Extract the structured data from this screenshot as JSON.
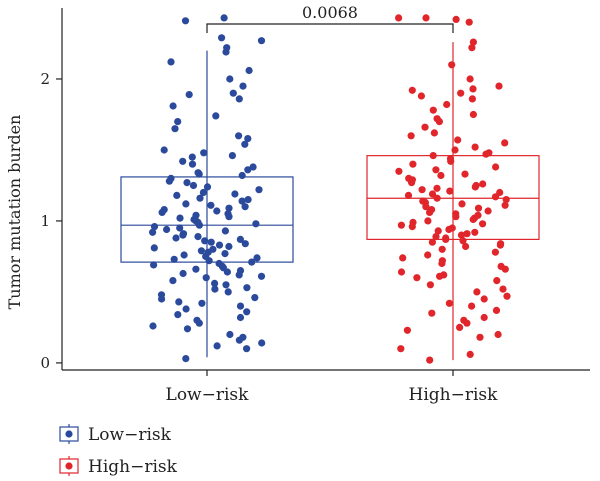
{
  "chart_data": {
    "type": "box",
    "title": "",
    "xlabel": "",
    "ylabel": "Tumor mutation burden",
    "ylim": [
      -0.05,
      2.5
    ],
    "yticks": [
      0,
      1,
      2
    ],
    "categories": [
      "Low−risk",
      "High−risk"
    ],
    "legend_position": "bottom-left",
    "series": [
      {
        "name": "Low−risk",
        "color": "#2b4a9c",
        "q1": 0.71,
        "median": 0.97,
        "q3": 1.31,
        "whisker_low": 0.04,
        "whisker_high": 2.2,
        "points": [
          2.43,
          2.41,
          2.29,
          2.27,
          2.22,
          2.19,
          2.12,
          2.06,
          2.0,
          1.95,
          1.9,
          1.89,
          1.86,
          1.81,
          1.74,
          1.7,
          1.65,
          1.6,
          1.58,
          1.54,
          1.5,
          1.48,
          1.46,
          1.45,
          1.42,
          1.4,
          1.38,
          1.36,
          1.34,
          1.33,
          1.32,
          1.3,
          1.28,
          1.27,
          1.25,
          1.24,
          1.22,
          1.2,
          1.19,
          1.18,
          1.16,
          1.15,
          1.14,
          1.12,
          1.11,
          1.1,
          1.09,
          1.08,
          1.07,
          1.06,
          1.05,
          1.04,
          1.03,
          1.02,
          1.01,
          1.0,
          0.99,
          0.98,
          0.97,
          0.96,
          0.95,
          0.94,
          0.93,
          0.92,
          0.91,
          0.9,
          0.89,
          0.88,
          0.87,
          0.86,
          0.85,
          0.84,
          0.83,
          0.82,
          0.81,
          0.8,
          0.79,
          0.78,
          0.77,
          0.76,
          0.75,
          0.74,
          0.73,
          0.72,
          0.71,
          0.7,
          0.69,
          0.68,
          0.67,
          0.66,
          0.65,
          0.64,
          0.63,
          0.62,
          0.61,
          0.6,
          0.58,
          0.56,
          0.55,
          0.53,
          0.52,
          0.5,
          0.48,
          0.46,
          0.45,
          0.43,
          0.42,
          0.4,
          0.38,
          0.36,
          0.34,
          0.32,
          0.3,
          0.28,
          0.26,
          0.24,
          0.2,
          0.18,
          0.16,
          0.14,
          0.12,
          0.1,
          0.03
        ]
      },
      {
        "name": "High−risk",
        "color": "#e0262b",
        "q1": 0.87,
        "median": 1.16,
        "q3": 1.46,
        "whisker_low": 0.02,
        "whisker_high": 2.26,
        "points": [
          2.43,
          2.43,
          2.42,
          2.4,
          2.26,
          2.22,
          2.1,
          2.0,
          1.95,
          1.93,
          1.92,
          1.9,
          1.88,
          1.86,
          1.82,
          1.78,
          1.75,
          1.72,
          1.7,
          1.66,
          1.62,
          1.6,
          1.57,
          1.55,
          1.52,
          1.5,
          1.48,
          1.47,
          1.46,
          1.44,
          1.42,
          1.4,
          1.38,
          1.36,
          1.35,
          1.33,
          1.32,
          1.3,
          1.29,
          1.28,
          1.27,
          1.26,
          1.25,
          1.24,
          1.23,
          1.22,
          1.21,
          1.2,
          1.19,
          1.18,
          1.17,
          1.16,
          1.15,
          1.14,
          1.13,
          1.12,
          1.11,
          1.1,
          1.09,
          1.08,
          1.07,
          1.06,
          1.05,
          1.04,
          1.03,
          1.02,
          1.01,
          1.0,
          0.99,
          0.98,
          0.97,
          0.96,
          0.95,
          0.94,
          0.93,
          0.92,
          0.91,
          0.9,
          0.89,
          0.88,
          0.87,
          0.86,
          0.85,
          0.84,
          0.83,
          0.82,
          0.8,
          0.78,
          0.76,
          0.74,
          0.72,
          0.7,
          0.68,
          0.66,
          0.64,
          0.62,
          0.61,
          0.6,
          0.58,
          0.55,
          0.52,
          0.5,
          0.47,
          0.45,
          0.42,
          0.4,
          0.37,
          0.35,
          0.32,
          0.3,
          0.28,
          0.25,
          0.23,
          0.2,
          0.18,
          0.1,
          0.06,
          0.02
        ]
      }
    ],
    "annotations": [
      {
        "type": "significance-bracket",
        "between": [
          "Low−risk",
          "High−risk"
        ],
        "text": "0.0068"
      }
    ]
  }
}
